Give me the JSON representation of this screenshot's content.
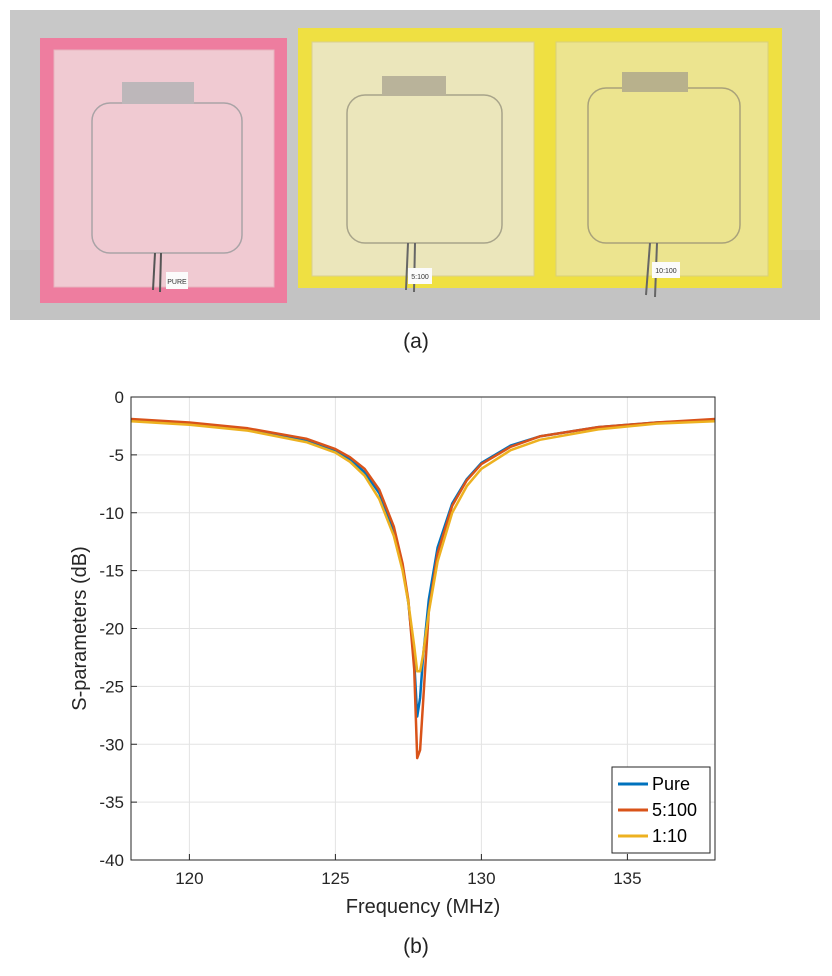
{
  "figure": {
    "caption_a": "(a)",
    "caption_b": "(b)",
    "photo": {
      "background": "#c9c9c9",
      "samples": [
        {
          "label": "PURE",
          "frame_color": "#ee7d9f",
          "pane_color": "#f1cfd4"
        },
        {
          "label": "5:100",
          "frame_color": "#efe042",
          "pane_color": "#ece6b8"
        },
        {
          "label": "10:100",
          "frame_color": "#efe042",
          "pane_color": "#ece48e"
        }
      ]
    }
  },
  "chart_data": {
    "type": "line",
    "xlabel": "Frequency (MHz)",
    "ylabel": "S-parameters (dB)",
    "xlim": [
      118,
      138
    ],
    "ylim": [
      -40,
      0
    ],
    "xticks": [
      120,
      125,
      130,
      135
    ],
    "yticks": [
      0,
      -5,
      -10,
      -15,
      -20,
      -25,
      -30,
      -35,
      -40
    ],
    "grid": true,
    "legend_position": "bottom-right",
    "series": [
      {
        "name": "Pure",
        "color": "#0072BD",
        "x": [
          118,
          120,
          122,
          124,
          125,
          125.5,
          126,
          126.5,
          127,
          127.3,
          127.5,
          127.7,
          127.8,
          127.9,
          128,
          128.2,
          128.5,
          129,
          129.5,
          130,
          131,
          132,
          134,
          136,
          138
        ],
        "y": [
          -2.0,
          -2.3,
          -2.8,
          -3.8,
          -4.7,
          -5.4,
          -6.5,
          -8.3,
          -11.5,
          -14.6,
          -17.8,
          -22.8,
          -27.6,
          -26.0,
          -22.5,
          -17.5,
          -13.0,
          -9.2,
          -7.1,
          -5.7,
          -4.2,
          -3.4,
          -2.6,
          -2.2,
          -2.0
        ]
      },
      {
        "name": "5:100",
        "color": "#D95319",
        "x": [
          118,
          120,
          122,
          124,
          125,
          125.5,
          126,
          126.5,
          127,
          127.3,
          127.5,
          127.7,
          127.8,
          127.9,
          128,
          128.2,
          128.5,
          129,
          129.5,
          130,
          131,
          132,
          134,
          136,
          138
        ],
        "y": [
          -1.9,
          -2.2,
          -2.7,
          -3.6,
          -4.5,
          -5.2,
          -6.2,
          -8.0,
          -11.2,
          -14.4,
          -17.6,
          -23.5,
          -31.2,
          -30.5,
          -26.5,
          -18.5,
          -13.5,
          -9.4,
          -7.2,
          -5.8,
          -4.3,
          -3.4,
          -2.6,
          -2.2,
          -1.9
        ]
      },
      {
        "name": "1:10",
        "color": "#EDB120",
        "x": [
          118,
          120,
          122,
          124,
          125,
          125.5,
          126,
          126.5,
          127,
          127.3,
          127.5,
          127.7,
          127.8,
          127.9,
          128,
          128.2,
          128.5,
          129,
          129.5,
          130,
          131,
          132,
          134,
          136,
          138
        ],
        "y": [
          -2.1,
          -2.4,
          -2.9,
          -3.9,
          -4.8,
          -5.6,
          -6.8,
          -8.8,
          -12.0,
          -15.0,
          -17.8,
          -21.5,
          -23.7,
          -23.7,
          -22.3,
          -18.6,
          -14.2,
          -10.0,
          -7.7,
          -6.2,
          -4.6,
          -3.7,
          -2.8,
          -2.3,
          -2.1
        ]
      }
    ]
  }
}
